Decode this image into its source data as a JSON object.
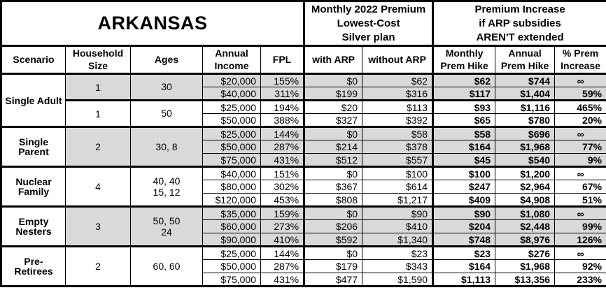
{
  "table": {
    "title": "ARKANSAS",
    "section_headers": {
      "premium": "Monthly 2022 Premium\nLowest-Cost\nSilver plan",
      "increase": "Premium Increase\nif ARP subsidies\nAREN'T extended"
    },
    "columns": [
      "Scenario",
      "Household\nSize",
      "Ages",
      "Annual\nIncome",
      "FPL",
      "with ARP",
      "without ARP",
      "Monthly\nPrem Hike",
      "Annual\nPrem Hike",
      "% Prem\nIncrease"
    ]
  },
  "colors": {
    "shaded_row": "#d9d9d9",
    "border": "#000000",
    "background": "#ffffff"
  },
  "scenarios": [
    {
      "name": "Single Adult",
      "groups": [
        {
          "household_size": "1",
          "ages": "30",
          "shaded": true,
          "rows": [
            {
              "income": "$20,000",
              "fpl": "155%",
              "with_arp": "$0",
              "without_arp": "$62",
              "monthly_hike": "$62",
              "annual_hike": "$744",
              "pct_increase": "∞"
            },
            {
              "income": "$40,000",
              "fpl": "311%",
              "with_arp": "$199",
              "without_arp": "$316",
              "monthly_hike": "$117",
              "annual_hike": "$1,404",
              "pct_increase": "59%"
            }
          ]
        },
        {
          "household_size": "1",
          "ages": "50",
          "shaded": false,
          "rows": [
            {
              "income": "$25,000",
              "fpl": "194%",
              "with_arp": "$20",
              "without_arp": "$113",
              "monthly_hike": "$93",
              "annual_hike": "$1,116",
              "pct_increase": "465%"
            },
            {
              "income": "$50,000",
              "fpl": "388%",
              "with_arp": "$327",
              "without_arp": "$392",
              "monthly_hike": "$65",
              "annual_hike": "$780",
              "pct_increase": "20%"
            }
          ]
        }
      ]
    },
    {
      "name": "Single Parent",
      "groups": [
        {
          "household_size": "2",
          "ages": "30, 8",
          "shaded": true,
          "rows": [
            {
              "income": "$25,000",
              "fpl": "144%",
              "with_arp": "$0",
              "without_arp": "$58",
              "monthly_hike": "$58",
              "annual_hike": "$696",
              "pct_increase": "∞"
            },
            {
              "income": "$50,000",
              "fpl": "287%",
              "with_arp": "$214",
              "without_arp": "$378",
              "monthly_hike": "$164",
              "annual_hike": "$1,968",
              "pct_increase": "77%"
            },
            {
              "income": "$75,000",
              "fpl": "431%",
              "with_arp": "$512",
              "without_arp": "$557",
              "monthly_hike": "$45",
              "annual_hike": "$540",
              "pct_increase": "9%"
            }
          ]
        }
      ]
    },
    {
      "name": "Nuclear Family",
      "groups": [
        {
          "household_size": "4",
          "ages": "40, 40\n15, 12",
          "shaded": false,
          "rows": [
            {
              "income": "$40,000",
              "fpl": "151%",
              "with_arp": "$0",
              "without_arp": "$100",
              "monthly_hike": "$100",
              "annual_hike": "$1,200",
              "pct_increase": "∞"
            },
            {
              "income": "$80,000",
              "fpl": "302%",
              "with_arp": "$367",
              "without_arp": "$614",
              "monthly_hike": "$247",
              "annual_hike": "$2,964",
              "pct_increase": "67%"
            },
            {
              "income": "$120,000",
              "fpl": "453%",
              "with_arp": "$808",
              "without_arp": "$1,217",
              "monthly_hike": "$409",
              "annual_hike": "$4,908",
              "pct_increase": "51%"
            }
          ]
        }
      ]
    },
    {
      "name": "Empty Nesters",
      "groups": [
        {
          "household_size": "3",
          "ages": "50, 50\n24",
          "shaded": true,
          "rows": [
            {
              "income": "$35,000",
              "fpl": "159%",
              "with_arp": "$0",
              "without_arp": "$90",
              "monthly_hike": "$90",
              "annual_hike": "$1,080",
              "pct_increase": "∞"
            },
            {
              "income": "$60,000",
              "fpl": "273%",
              "with_arp": "$206",
              "without_arp": "$410",
              "monthly_hike": "$204",
              "annual_hike": "$2,448",
              "pct_increase": "99%"
            },
            {
              "income": "$90,000",
              "fpl": "410%",
              "with_arp": "$592",
              "without_arp": "$1,340",
              "monthly_hike": "$748",
              "annual_hike": "$8,976",
              "pct_increase": "126%"
            }
          ]
        }
      ]
    },
    {
      "name": "Pre-Retirees",
      "groups": [
        {
          "household_size": "2",
          "ages": "60, 60",
          "shaded": false,
          "rows": [
            {
              "income": "$25,000",
              "fpl": "144%",
              "with_arp": "$0",
              "without_arp": "$23",
              "monthly_hike": "$23",
              "annual_hike": "$276",
              "pct_increase": "∞"
            },
            {
              "income": "$50,000",
              "fpl": "287%",
              "with_arp": "$179",
              "without_arp": "$343",
              "monthly_hike": "$164",
              "annual_hike": "$1,968",
              "pct_increase": "92%"
            },
            {
              "income": "$75,000",
              "fpl": "431%",
              "with_arp": "$477",
              "without_arp": "$1,590",
              "monthly_hike": "$1,113",
              "annual_hike": "$13,356",
              "pct_increase": "233%"
            }
          ]
        }
      ]
    }
  ]
}
